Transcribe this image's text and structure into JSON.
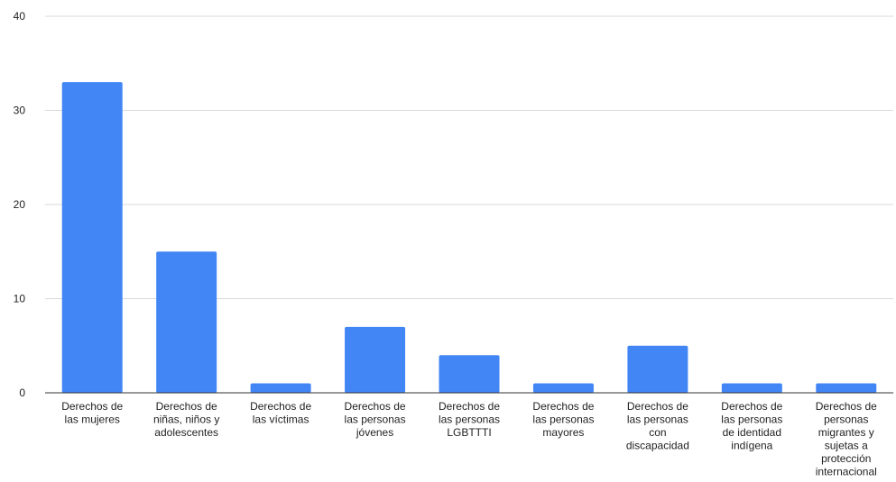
{
  "chart_data": {
    "type": "bar",
    "title": "",
    "xlabel": "",
    "ylabel": "",
    "ylim": [
      0,
      40
    ],
    "yticks": [
      0,
      10,
      20,
      30,
      40
    ],
    "grid": true,
    "legend": "none",
    "bar_color": "#4285f4",
    "categories": [
      "Derechos de las mujeres",
      "Derechos de niñas, niños y adolescentes",
      "Derechos de las víctimas",
      "Derechos de las personas jóvenes",
      "Derechos de las personas LGBTTTI",
      "Derechos de las personas mayores",
      "Derechos de las personas con discapacidad",
      "Derechos de las personas de identidad indígena",
      "Derechos de personas migrantes y sujetas a protección internacional"
    ],
    "category_label_lines": [
      [
        "Derechos de",
        "las mujeres"
      ],
      [
        "Derechos de",
        "niñas, niños y",
        "adolescentes"
      ],
      [
        "Derechos de",
        "las víctimas"
      ],
      [
        "Derechos de",
        "las personas",
        "jóvenes"
      ],
      [
        "Derechos de",
        "las personas",
        "LGBTTTI"
      ],
      [
        "Derechos de",
        "las personas",
        "mayores"
      ],
      [
        "Derechos de",
        "las personas",
        "con",
        "discapacidad"
      ],
      [
        "Derechos de",
        "las personas",
        "de identidad",
        "indígena"
      ],
      [
        "Derechos de",
        "personas",
        "migrantes y",
        "sujetas a",
        "protección",
        "internacional"
      ]
    ],
    "values": [
      33,
      15,
      1,
      7,
      4,
      1,
      5,
      1,
      1
    ]
  }
}
